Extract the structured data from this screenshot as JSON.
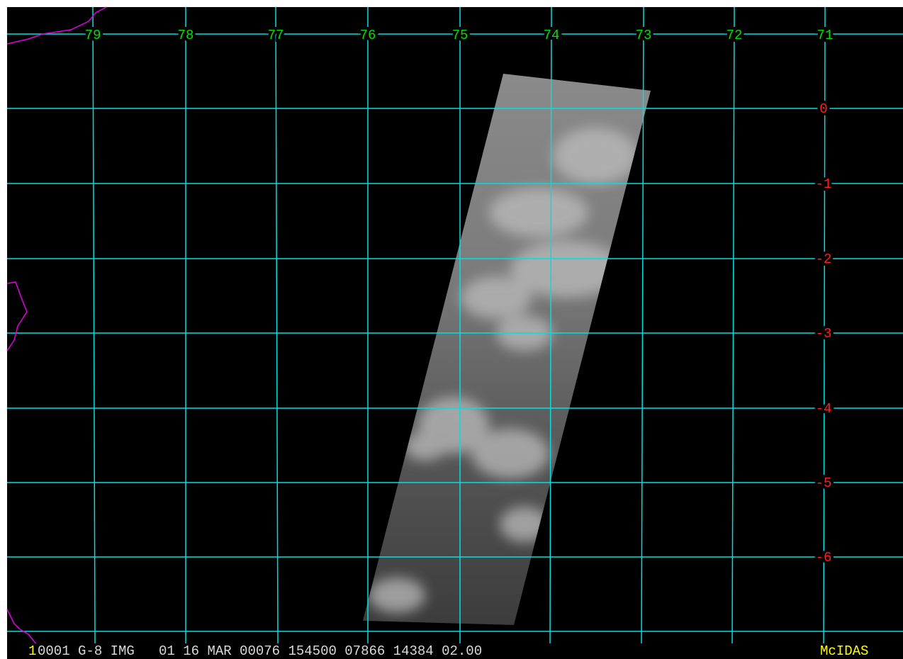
{
  "map": {
    "longitude_labels": [
      "79",
      "78",
      "77",
      "76",
      "75",
      "74",
      "73",
      "72",
      "71"
    ],
    "latitude_labels": [
      "0",
      "-1",
      "-2",
      "-3",
      "-4",
      "-5",
      "-6"
    ],
    "status_bar": {
      "frame": "1",
      "info": "0001 G-8 IMG   01 16 MAR 00076 154500 07866 14384 02.00",
      "brand": "McIDAS"
    }
  }
}
